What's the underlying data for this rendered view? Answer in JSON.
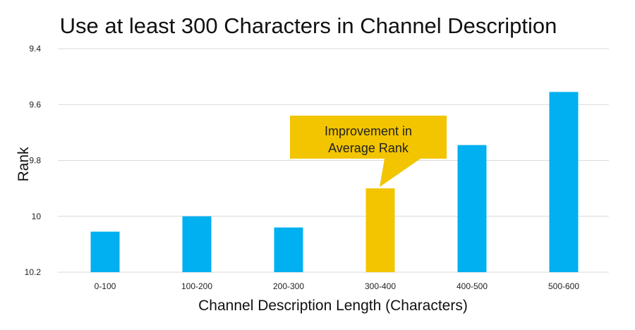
{
  "chart_data": {
    "type": "bar",
    "title": "Use at least 300 Characters in Channel Description",
    "xlabel": "Channel Description Length (Characters)",
    "ylabel": "Rank",
    "categories": [
      "0-100",
      "100-200",
      "200-300",
      "300-400",
      "400-500",
      "500-600"
    ],
    "values": [
      10.055,
      10.0,
      10.04,
      9.9,
      9.745,
      9.555
    ],
    "ylim": [
      10.2,
      9.4
    ],
    "y_inverted": true,
    "yticks": [
      9.4,
      9.6,
      9.8,
      10,
      10.2
    ],
    "ytick_labels": [
      "9.4",
      "9.6",
      "9.8",
      "10",
      "10.2"
    ],
    "grid": true,
    "highlight_index": 3,
    "annotation": {
      "lines": [
        "Improvement in",
        "Average Rank"
      ],
      "target_category": "300-400"
    }
  },
  "colors": {
    "bar": "#00b0f0",
    "highlight": "#f2c500",
    "grid": "#d9d9d9"
  }
}
